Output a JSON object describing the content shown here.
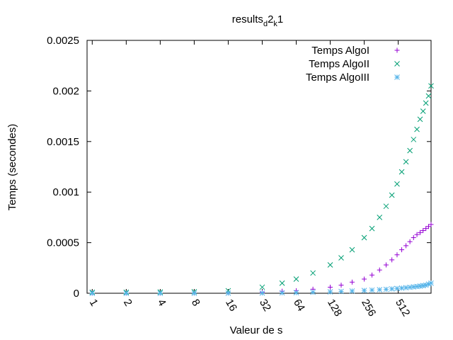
{
  "chart_data": {
    "type": "scatter",
    "title": "results",
    "title_parts": {
      "base": "results",
      "sub1": "d",
      "mid": "2",
      "sub2": "k",
      "tail": "1"
    },
    "xlabel": "Valeur de s",
    "ylabel": "Temps (secondes)",
    "x_scale": "log2",
    "xlim": [
      0.9,
      1000
    ],
    "ylim": [
      0,
      0.0025
    ],
    "x_ticks": [
      1,
      2,
      4,
      8,
      16,
      32,
      64,
      128,
      256,
      512
    ],
    "x_tick_labels": [
      "1",
      "2",
      "4",
      "8",
      "16",
      "32",
      "64",
      "128",
      "256",
      "512"
    ],
    "y_ticks": [
      0,
      0.0005,
      0.001,
      0.0015,
      0.002,
      0.0025
    ],
    "y_tick_labels": [
      "0",
      "0.0005",
      "0.001",
      "0.0015",
      "0.002",
      "0.0025"
    ],
    "legend_position": "top-right",
    "grid": false,
    "series": [
      {
        "name": "Temps AlgoI",
        "marker": "+",
        "color": "#9400d3",
        "x": [
          1,
          2,
          4,
          8,
          16,
          32,
          48,
          64,
          90,
          128,
          160,
          200,
          256,
          300,
          350,
          400,
          450,
          500,
          550,
          600,
          650,
          700,
          750,
          800,
          850,
          900,
          950,
          1000
        ],
        "y": [
          0,
          0,
          0,
          2e-06,
          5e-06,
          1e-05,
          2e-05,
          2.5e-05,
          4e-05,
          6e-05,
          8e-05,
          0.00011,
          0.00014,
          0.00018,
          0.00023,
          0.00028,
          0.00033,
          0.00038,
          0.00043,
          0.00047,
          0.00051,
          0.00055,
          0.00058,
          0.0006,
          0.00062,
          0.00064,
          0.00066,
          0.00068
        ]
      },
      {
        "name": "Temps AlgoII",
        "marker": "x",
        "color": "#009e73",
        "x": [
          1,
          2,
          4,
          8,
          16,
          32,
          48,
          64,
          90,
          128,
          160,
          200,
          256,
          300,
          350,
          400,
          450,
          500,
          550,
          600,
          650,
          700,
          750,
          800,
          850,
          900,
          950,
          1000
        ],
        "y": [
          1e-05,
          1e-05,
          1.2e-05,
          1.5e-05,
          2.5e-05,
          6e-05,
          0.0001,
          0.00014,
          0.0002,
          0.00028,
          0.00035,
          0.00043,
          0.00055,
          0.00064,
          0.00075,
          0.00086,
          0.00097,
          0.00108,
          0.0012,
          0.0013,
          0.00141,
          0.00152,
          0.00162,
          0.00172,
          0.0018,
          0.00188,
          0.00195,
          0.00205
        ]
      },
      {
        "name": "Temps AlgoIII",
        "marker": "*",
        "color": "#56b4e9",
        "x": [
          1,
          2,
          4,
          8,
          16,
          32,
          48,
          64,
          90,
          128,
          160,
          200,
          256,
          300,
          350,
          400,
          450,
          500,
          550,
          600,
          650,
          700,
          750,
          800,
          850,
          900,
          950,
          1000
        ],
        "y": [
          0,
          0,
          0,
          0,
          1e-06,
          2e-06,
          4e-06,
          6e-06,
          1e-05,
          1.4e-05,
          1.8e-05,
          2.2e-05,
          2.7e-05,
          3.1e-05,
          3.5e-05,
          3.9e-05,
          4.3e-05,
          4.7e-05,
          5.1e-05,
          5.5e-05,
          5.9e-05,
          6.3e-05,
          6.7e-05,
          7.1e-05,
          7.5e-05,
          8e-05,
          9e-05,
          0.0001
        ]
      }
    ]
  }
}
